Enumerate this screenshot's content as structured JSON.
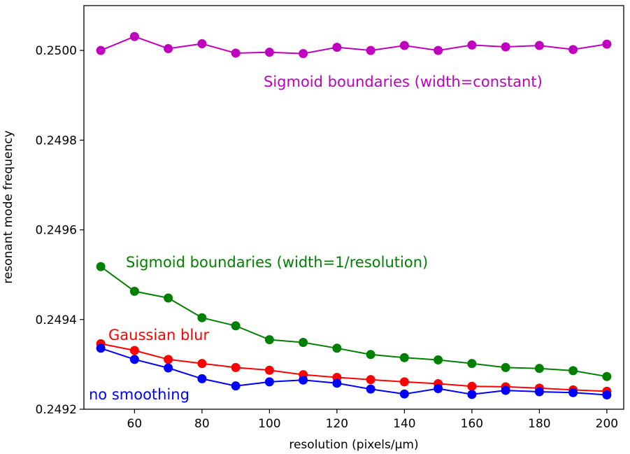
{
  "chart_data": {
    "type": "line",
    "title": "",
    "xlabel": "resolution (pixels/μm)",
    "ylabel": "resonant mode frequency",
    "xlim": [
      45,
      205
    ],
    "ylim": [
      0.2492,
      0.2501
    ],
    "xticks": [
      60,
      80,
      100,
      120,
      140,
      160,
      180,
      200
    ],
    "yticks": [
      0.2492,
      0.2494,
      0.2496,
      0.2498,
      0.25
    ],
    "ytick_labels": [
      "0.2492",
      "0.2494",
      "0.2496",
      "0.2498",
      "0.2500"
    ],
    "grid": false,
    "legend": "none (series labeled inline)",
    "x": [
      50,
      60,
      70,
      80,
      90,
      100,
      110,
      120,
      130,
      140,
      150,
      160,
      170,
      180,
      190,
      200
    ],
    "series": [
      {
        "name": "Sigmoid boundaries (width=constant)",
        "color": "#bf00bf",
        "values": [
          0.25,
          0.250031,
          0.250004,
          0.250015,
          0.249994,
          0.249996,
          0.249993,
          0.250007,
          0.25,
          0.250011,
          0.25,
          0.250012,
          0.250008,
          0.250011,
          0.250002,
          0.250014
        ]
      },
      {
        "name": "Sigmoid boundaries (width=1/resolution)",
        "color": "#008000",
        "values": [
          0.249518,
          0.249463,
          0.249448,
          0.249404,
          0.249386,
          0.249355,
          0.249349,
          0.249336,
          0.249322,
          0.249315,
          0.24931,
          0.249302,
          0.249293,
          0.249291,
          0.249286,
          0.249273
        ]
      },
      {
        "name": "Gaussian blur",
        "color": "#ff0000",
        "values": [
          0.249346,
          0.249331,
          0.249311,
          0.249302,
          0.249293,
          0.249287,
          0.249277,
          0.249271,
          0.249266,
          0.249261,
          0.249257,
          0.249251,
          0.24925,
          0.249247,
          0.249243,
          0.24924
        ]
      },
      {
        "name": "no smoothing",
        "color": "#0000ff",
        "values": [
          0.249336,
          0.249311,
          0.249292,
          0.249268,
          0.249252,
          0.249261,
          0.249265,
          0.249258,
          0.249245,
          0.249234,
          0.249246,
          0.249233,
          0.249242,
          0.249239,
          0.249237,
          0.249232
        ]
      }
    ]
  }
}
